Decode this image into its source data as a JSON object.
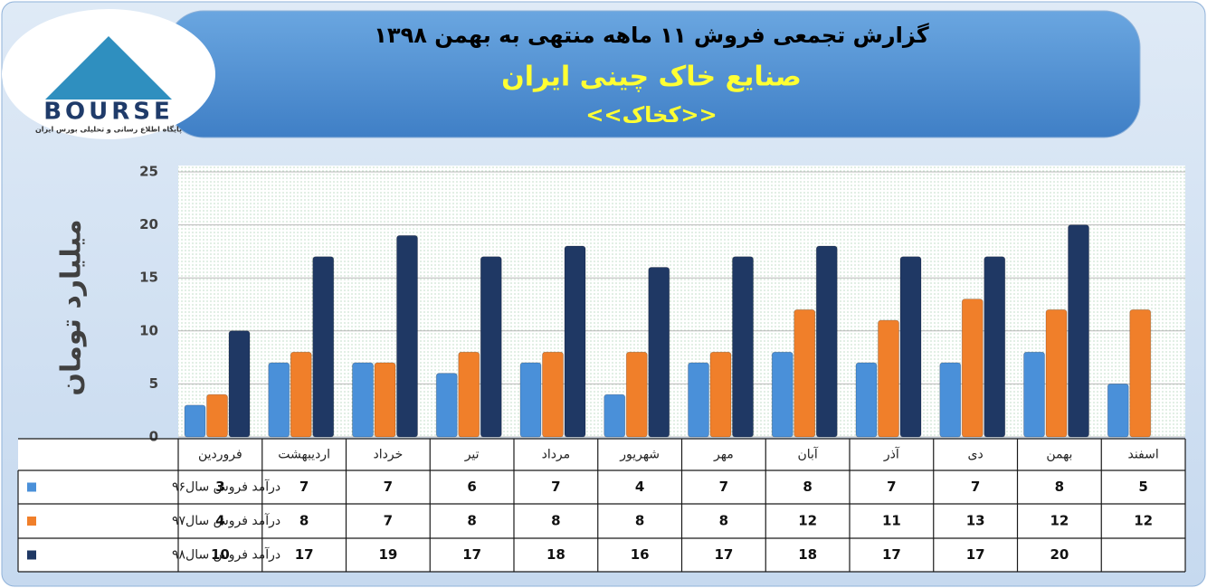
{
  "logo": {
    "name": "BOURSE",
    "tagline": "پایگاه اطلاع رسانی و تحلیلی بورس ایران"
  },
  "header": {
    "title": "گزارش تجمعی فروش  ۱۱ ماهه منتهی به بهمن ۱۳۹۸",
    "company": "صنایع خاک چینی ایران",
    "symbol": "<<کخاک>>"
  },
  "chart_data": {
    "type": "bar",
    "y_label": "میلیارد تومان",
    "categories": [
      "فروردین",
      "اردیبهشت",
      "خرداد",
      "تیر",
      "مرداد",
      "شهریور",
      "مهر",
      "آبان",
      "آذر",
      "دی",
      "بهمن",
      "اسفند"
    ],
    "series": [
      {
        "name": "درآمد فروش سال۹۶",
        "color": "#4a90d9",
        "values": [
          3,
          7,
          7,
          6,
          7,
          4,
          7,
          8,
          7,
          7,
          8,
          5
        ]
      },
      {
        "name": "درآمد فروش سال۹۷",
        "color": "#f07f2a",
        "values": [
          4,
          8,
          7,
          8,
          8,
          8,
          8,
          12,
          11,
          13,
          12,
          12
        ]
      },
      {
        "name": "درآمد فروش سال۹۸",
        "color": "#1f3864",
        "values": [
          10,
          17,
          19,
          17,
          18,
          16,
          17,
          18,
          17,
          17,
          20,
          null
        ]
      }
    ],
    "ylim": [
      0,
      25
    ],
    "yticks": [
      0,
      5,
      10,
      15,
      20,
      25
    ]
  }
}
